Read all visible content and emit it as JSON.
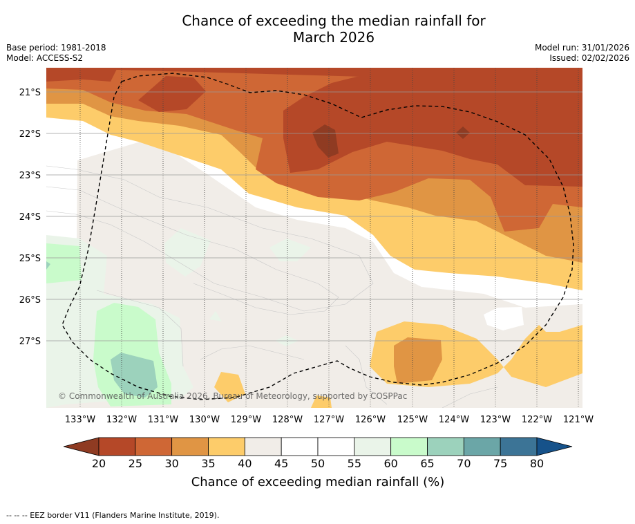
{
  "title": {
    "line1": "Chance of exceeding the median rainfall for",
    "line2": "March 2026"
  },
  "meta": {
    "base_period": "Base period: 1981-2018",
    "model": "Model: ACCESS-S2",
    "model_run": "Model run: 31/01/2026",
    "issued": "Issued: 02/02/2026"
  },
  "map": {
    "lat_labels": [
      "21°S",
      "22°S",
      "23°S",
      "24°S",
      "25°S",
      "26°S",
      "27°S"
    ],
    "lat_values": [
      -21,
      -22,
      -23,
      -24,
      -25,
      -26,
      -27
    ],
    "lon_labels": [
      "133°W",
      "132°W",
      "131°W",
      "130°W",
      "129°W",
      "128°W",
      "127°W",
      "126°W",
      "125°W",
      "124°W",
      "123°W",
      "122°W",
      "121°W"
    ],
    "lon_values": [
      -133,
      -132,
      -131,
      -130,
      -129,
      -128,
      -127,
      -126,
      -125,
      -124,
      -123,
      -122,
      -121
    ],
    "lon_range": [
      -133.8,
      -120.9
    ],
    "lat_range": [
      -28.6,
      -20.4
    ],
    "copyright": "© Commonwealth of Australia 2026, Bureau of Meteorology, supported by COSPPac"
  },
  "colorbar": {
    "ticks": [
      "20",
      "25",
      "30",
      "35",
      "40",
      "45",
      "50",
      "55",
      "60",
      "65",
      "70",
      "75",
      "80"
    ],
    "colors": [
      "#b54828",
      "#cf6735",
      "#e09544",
      "#fdcc6a",
      "#f1ede8",
      "#ffffff",
      "#ffffff",
      "#eaf4e9",
      "#c9fbcb",
      "#9cd2bc",
      "#6ba6a7",
      "#3c7496"
    ],
    "under_color": "#8f3b22",
    "over_color": "#16528a",
    "label": "Chance of exceeding median rainfall (%)"
  },
  "footer": {
    "legend": "--  --  -- EEZ border V11 (Flanders Marine Institute, 2019)."
  }
}
